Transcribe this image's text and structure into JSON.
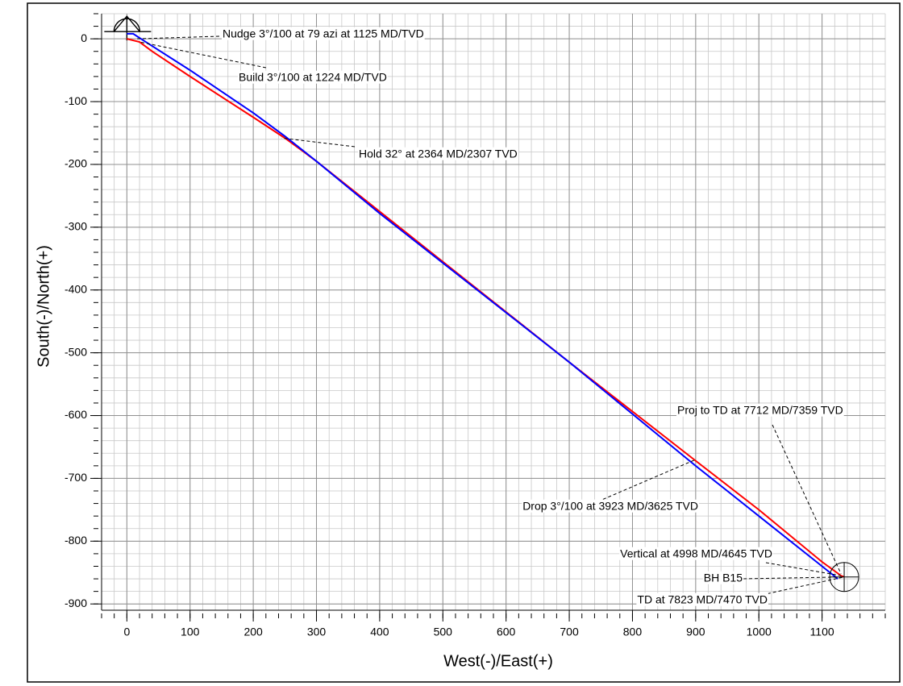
{
  "chart_data": {
    "type": "line",
    "x_label": "West(-)/East(+)",
    "y_label": "South(-)/North(+)",
    "xlim": [
      -40,
      1200
    ],
    "ylim": [
      -910,
      40
    ],
    "xticks": [
      0,
      100,
      200,
      300,
      400,
      500,
      600,
      700,
      800,
      900,
      1000,
      1100
    ],
    "yticks": [
      0,
      -100,
      -200,
      -300,
      -400,
      -500,
      -600,
      -700,
      -800,
      -900
    ],
    "grid": true,
    "series": [
      {
        "color": "#ff0000",
        "x": [
          0,
          20,
          40,
          100,
          200,
          250,
          300,
          400,
          700,
          900,
          1000,
          1100,
          1130,
          1135
        ],
        "values": [
          0,
          -5,
          -20,
          -60,
          -125,
          -158,
          -195,
          -275,
          -515,
          -672,
          -750,
          -833,
          -855,
          -857
        ]
      },
      {
        "color": "#0000ff",
        "x": [
          0,
          10,
          30,
          100,
          200,
          250,
          300,
          400,
          700,
          900,
          1000,
          1100,
          1125
        ],
        "values": [
          8,
          8,
          -5,
          -50,
          -118,
          -155,
          -195,
          -278,
          -515,
          -680,
          -760,
          -840,
          -860
        ]
      }
    ],
    "annotations": [
      {
        "text": "Nudge 3°/100 at 79 azi at 1125 MD/TVD",
        "x": 15,
        "y": 0
      },
      {
        "text": "Build 3°/100 at 1224 MD/TVD",
        "x": 20,
        "y": -5
      },
      {
        "text": "Hold 32° at 2364 MD/2307 TVD",
        "x": 245,
        "y": -158
      },
      {
        "text": "Drop 3°/100 at 3923 MD/3625 TVD",
        "x": 900,
        "y": -670
      },
      {
        "text": "Proj to TD at 7712 MD/7359 TVD",
        "x": 1130,
        "y": -852
      },
      {
        "text": "Vertical at 4998 MD/4645 TVD",
        "x": 1130,
        "y": -855
      },
      {
        "text": "BH B15",
        "x": 1135,
        "y": -857
      },
      {
        "text": "TD at 7823 MD/7470 TVD",
        "x": 1135,
        "y": -857
      }
    ],
    "target": {
      "x": 1135,
      "y": -857
    }
  }
}
